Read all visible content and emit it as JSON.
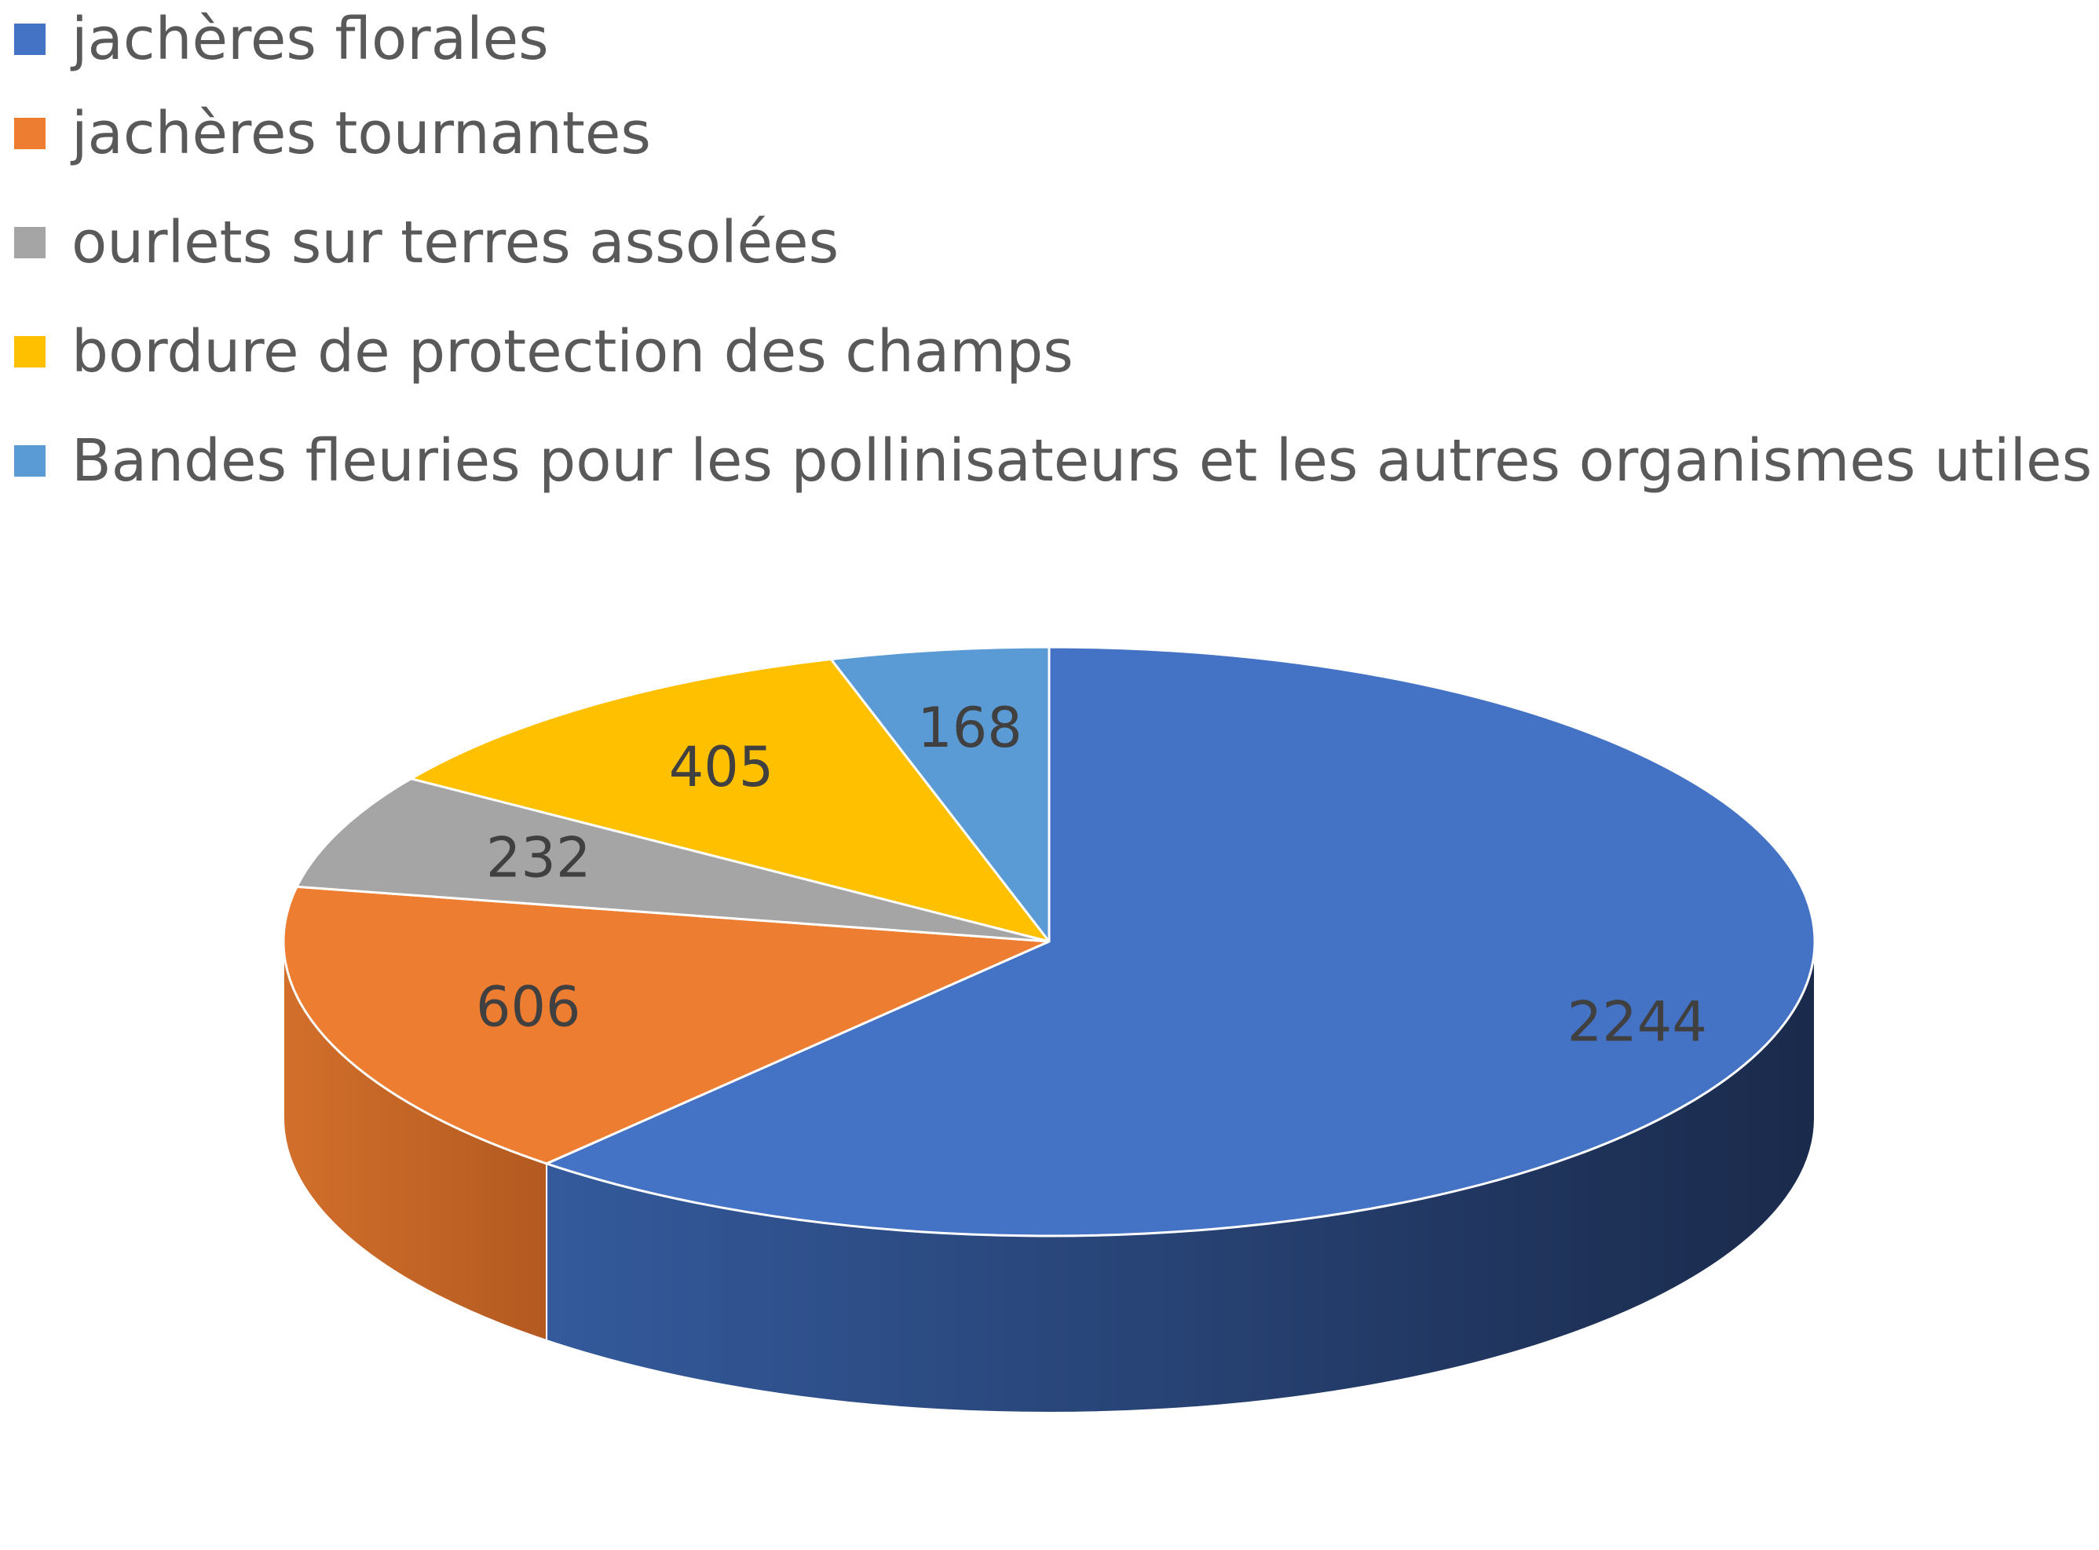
{
  "chart_data": {
    "type": "pie",
    "categories": [
      "jachères florales",
      "jachères tournantes",
      "ourlets sur terres assolées",
      "bordure de protection des champs",
      "Bandes fleuries pour les pollinisateurs et les autres organismes utiles"
    ],
    "values": [
      2244,
      606,
      232,
      405,
      168
    ],
    "colors": [
      "#4472C4",
      "#ED7D31",
      "#A5A5A5",
      "#FFC000",
      "#5B9BD5"
    ],
    "data_labels": [
      "2244",
      "606",
      "232",
      "405",
      "168"
    ],
    "legend_position": "top",
    "style": "3d"
  }
}
